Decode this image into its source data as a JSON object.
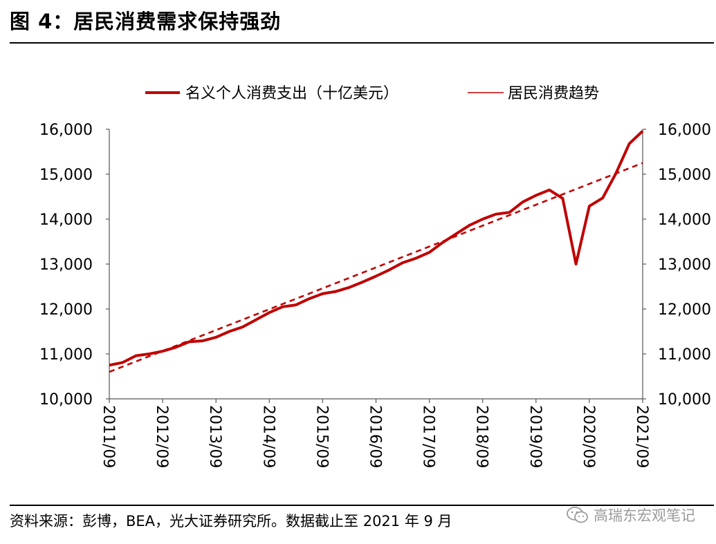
{
  "figure": {
    "title": "图 4：居民消费需求保持强劲",
    "source": "资料来源：彭博，BEA，光大证券研究所。数据截止至 2021 年 9 月",
    "watermark": "高瑞东宏观笔记"
  },
  "colors": {
    "series": "#c00000",
    "axis": "#555555",
    "text": "#000000"
  },
  "chart_data": {
    "type": "line",
    "title": "",
    "xlabel": "",
    "ylabel": "",
    "ylim": [
      10000,
      16000
    ],
    "yticks": [
      10000,
      11000,
      12000,
      13000,
      14000,
      15000,
      16000
    ],
    "ytick_labels": [
      "10,000",
      "11,000",
      "12,000",
      "13,000",
      "14,000",
      "15,000",
      "16,000"
    ],
    "secondary_ytick_labels": [
      "10,000",
      "11,000",
      "12,000",
      "13,000",
      "14,000",
      "15,000",
      "16,000"
    ],
    "x_tick_labels": [
      "2011/09",
      "2012/09",
      "2013/09",
      "2014/09",
      "2015/09",
      "2016/09",
      "2017/09",
      "2018/09",
      "2019/09",
      "2020/09",
      "2021/09"
    ],
    "x_start": 2011.75,
    "x_end": 2021.75,
    "legend_position": "top",
    "series": [
      {
        "name": "名义个人消费支出（十亿美元）",
        "style": "solid",
        "x": [
          2011.75,
          2012.0,
          2012.25,
          2012.5,
          2012.75,
          2013.0,
          2013.25,
          2013.5,
          2013.75,
          2014.0,
          2014.25,
          2014.5,
          2014.75,
          2015.0,
          2015.25,
          2015.5,
          2015.75,
          2016.0,
          2016.25,
          2016.5,
          2016.75,
          2017.0,
          2017.25,
          2017.5,
          2017.75,
          2018.0,
          2018.25,
          2018.5,
          2018.75,
          2019.0,
          2019.25,
          2019.5,
          2019.75,
          2020.0,
          2020.25,
          2020.5,
          2020.75,
          2021.0,
          2021.25,
          2021.5,
          2021.75
        ],
        "values": [
          10750,
          10810,
          10960,
          11000,
          11060,
          11150,
          11270,
          11290,
          11370,
          11500,
          11600,
          11760,
          11920,
          12050,
          12090,
          12230,
          12340,
          12390,
          12480,
          12600,
          12730,
          12870,
          13030,
          13130,
          13260,
          13480,
          13670,
          13860,
          14000,
          14110,
          14150,
          14380,
          14530,
          14650,
          14460,
          13000,
          14290,
          14470,
          15020,
          15680,
          15960
        ]
      },
      {
        "name": "居民消费趋势",
        "style": "dashed",
        "x": [
          2011.75,
          2021.75
        ],
        "values": [
          10600,
          15250
        ]
      }
    ]
  }
}
